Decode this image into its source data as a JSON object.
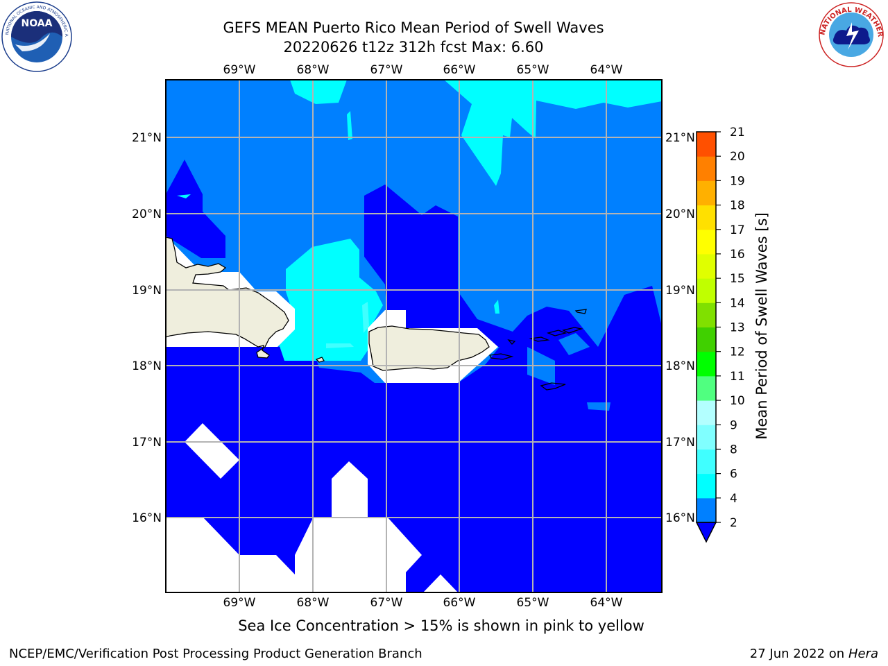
{
  "title_line1": "GEFS MEAN Puerto Rico Mean Period of Swell Waves",
  "title_line2": "20220626 t12z 312h fcst   Max: 6.60",
  "caption": "Sea Ice Concentration > 15% is shown in pink to yellow",
  "footer_left": "NCEP/EMC/Verification Post Processing Product Generation Branch",
  "footer_date": "27 Jun 2022 on",
  "footer_host": "Hera",
  "logos": {
    "noaa": {
      "text": "NOAA",
      "ring_text": "NATIONAL OCEANIC AND ATMOSPHERIC ADMINISTRATION · U.S. DEPARTMENT OF COMMERCE"
    },
    "nws": {
      "ring_text": "NATIONAL WEATHER SERVICE"
    }
  },
  "map": {
    "lon_labels": [
      "69°W",
      "68°W",
      "67°W",
      "66°W",
      "65°W",
      "64°W"
    ],
    "lat_labels": [
      "21°N",
      "20°N",
      "19°N",
      "18°N",
      "17°N",
      "16°N"
    ],
    "extent": {
      "lon_min": -70.0,
      "lon_max": -63.3,
      "lat_min": 15.0,
      "lat_max": 21.75
    },
    "colors": {
      "land": "#efeedd",
      "gridline": "#b3b3b3",
      "below_2": "#0000ff",
      "band_2_4": "#0080ff",
      "band_4_6": "#00ffff",
      "band_6_8": "#40ffff",
      "no_data": "#ffffff"
    }
  },
  "colorbar": {
    "title": "Mean Period of Swell Waves [s]",
    "labels": [
      "2",
      "4",
      "6",
      "8",
      "9",
      "10",
      "11",
      "12",
      "13",
      "14",
      "15",
      "16",
      "17",
      "18",
      "19",
      "20",
      "21"
    ],
    "band_colors": [
      "#0080ff",
      "#00ffff",
      "#40ffff",
      "#80ffff",
      "#b3ffff",
      "#50ff80",
      "#00ff00",
      "#40d000",
      "#80e000",
      "#c0ff00",
      "#e0ff00",
      "#ffff00",
      "#ffe000",
      "#ffb000",
      "#ff8000",
      "#ff5000",
      "#ff2000",
      "#ff0000"
    ],
    "extend_color": "#0000ff"
  }
}
